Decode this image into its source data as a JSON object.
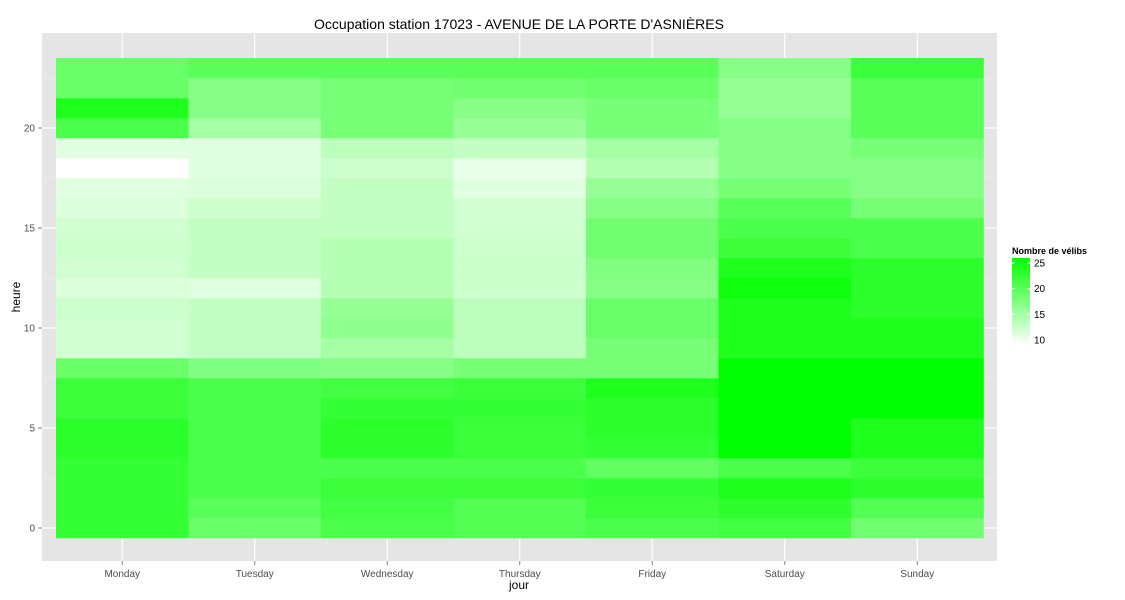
{
  "chart_data": {
    "type": "heatmap",
    "title": "Occupation station 17023 - AVENUE DE LA PORTE D'ASNIÈRES",
    "xlabel": "jour",
    "ylabel": "heure",
    "x_categories": [
      "Monday",
      "Tuesday",
      "Wednesday",
      "Thursday",
      "Friday",
      "Saturday",
      "Sunday"
    ],
    "y_ticks": [
      0,
      5,
      10,
      15,
      20
    ],
    "y_range": [
      -0.5,
      23.5
    ],
    "grid": true,
    "legend": {
      "title": "Nombre de vélibs",
      "ticks": [
        10,
        15,
        20,
        25
      ],
      "range": [
        9,
        26
      ],
      "low_color": "#ffffff",
      "high_color": "#00ff00",
      "position": "right"
    },
    "hours": [
      0,
      1,
      2,
      3,
      4,
      5,
      6,
      7,
      8,
      9,
      10,
      11,
      12,
      13,
      14,
      15,
      16,
      17,
      18,
      19,
      20,
      21,
      22,
      23
    ],
    "values": [
      {
        "day": "Monday",
        "by_hour": [
          22.5,
          22.5,
          22.5,
          22.5,
          23,
          23,
          22,
          22,
          19,
          12,
          12,
          12.5,
          11.5,
          12,
          12.5,
          12,
          11.5,
          11,
          9,
          11,
          21,
          24,
          19,
          19
        ]
      },
      {
        "day": "Tuesday",
        "by_hour": [
          19,
          20,
          21,
          21,
          21,
          21,
          21,
          21,
          17.5,
          13,
          13,
          13,
          11,
          13,
          13,
          13,
          12.5,
          11.5,
          11,
          11,
          15,
          17,
          17,
          20
        ]
      },
      {
        "day": "Wednesday",
        "by_hour": [
          21,
          21.5,
          22,
          21,
          23,
          23,
          22.5,
          21.5,
          17,
          15,
          16.5,
          16,
          14,
          14,
          14,
          13,
          13,
          13,
          12.5,
          13.5,
          18,
          18,
          18,
          20
        ]
      },
      {
        "day": "Thursday",
        "by_hour": [
          20.5,
          20.5,
          22,
          21,
          22,
          22,
          22.5,
          22,
          18,
          13.5,
          13.5,
          13.5,
          12.5,
          12.5,
          12.5,
          12,
          12,
          11,
          10.5,
          13,
          16,
          17,
          18.5,
          20
        ]
      },
      {
        "day": "Friday",
        "by_hour": [
          21,
          22,
          22.5,
          19.5,
          22.5,
          23,
          23,
          24,
          18,
          18,
          19,
          19,
          17,
          17.5,
          18.5,
          18.5,
          17,
          16,
          14,
          15,
          18,
          18,
          19,
          20
        ]
      },
      {
        "day": "Saturday",
        "by_hour": [
          21.5,
          23,
          24,
          21,
          27,
          27,
          26,
          26,
          26,
          24,
          24,
          24,
          25,
          24,
          22,
          21,
          20,
          18,
          17,
          17,
          17,
          16,
          16,
          17
        ]
      },
      {
        "day": "Sunday",
        "by_hour": [
          18.5,
          20.5,
          23,
          22,
          24,
          24,
          26,
          26,
          26,
          24,
          24,
          23,
          23,
          23,
          21,
          21,
          18,
          17,
          17,
          18,
          20,
          20,
          20,
          22
        ]
      }
    ]
  }
}
